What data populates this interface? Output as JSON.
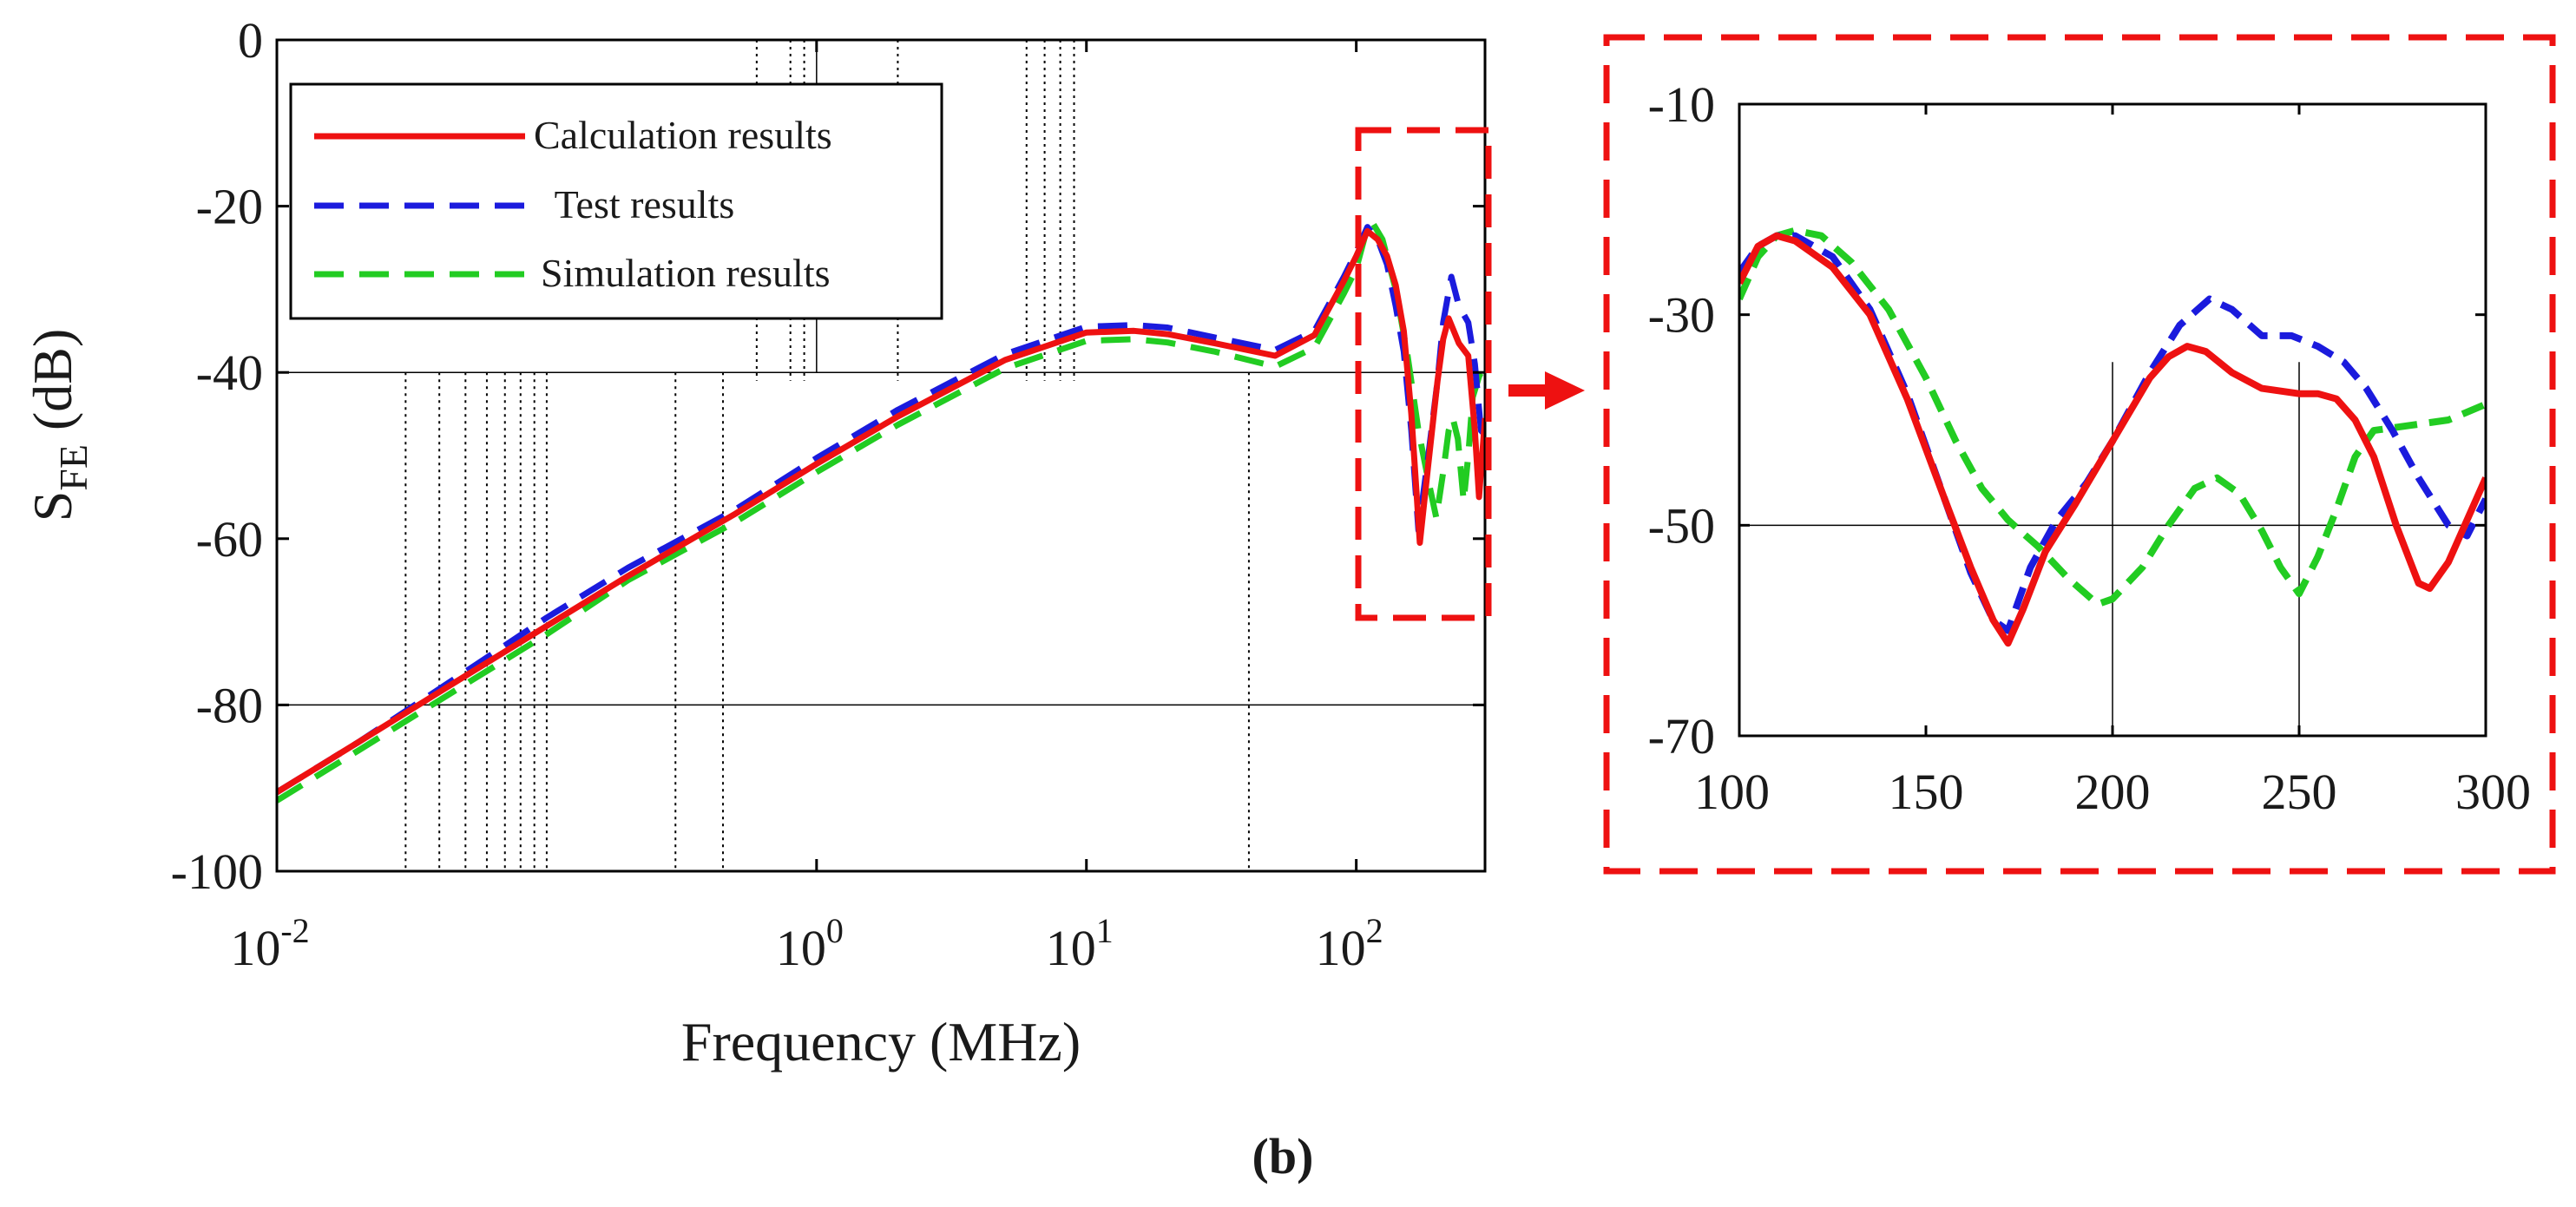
{
  "figure_label": "(b)",
  "colors": {
    "calculation": "#ee1111",
    "test": "#1b1bdd",
    "simulation": "#22cc22",
    "zoom_box": "#ee1111",
    "axis": "#000000",
    "grid": "#000000"
  },
  "chart_data": [
    {
      "id": "main",
      "type": "line",
      "x_scale": "log",
      "xlabel": "Frequency (MHz)",
      "ylabel_base": "S",
      "ylabel_sub": "FE",
      "ylabel_unit": "(dB)",
      "xlim": [
        0.01,
        300
      ],
      "ylim": [
        -100,
        0
      ],
      "y_ticks": [
        0,
        -20,
        -40,
        -60,
        -80,
        -100
      ],
      "y_tick_labels": [
        "0",
        "-20",
        "-40",
        "-60",
        "-80",
        "-100"
      ],
      "x_ticks": [
        {
          "value": 0.01,
          "base": "10",
          "exp": "-2"
        },
        {
          "value": 1,
          "base": "10",
          "exp": "0"
        },
        {
          "value": 10,
          "base": "10",
          "exp": "1"
        },
        {
          "value": 100,
          "base": "10",
          "exp": "2"
        }
      ],
      "grid": "partial",
      "legend_position": "top-left",
      "legend": [
        "Calculation results",
        " Test results",
        "Simulation results"
      ],
      "series": [
        {
          "name": "Calculation results",
          "key": "calculation",
          "style": "solid",
          "x": [
            0.01,
            0.02,
            0.05,
            0.1,
            0.2,
            0.5,
            1,
            2,
            5,
            10,
            15,
            20,
            30,
            50,
            70,
            90,
            100,
            110,
            120,
            130,
            140,
            150,
            160,
            172,
            185,
            200,
            210,
            220,
            240,
            260,
            275,
            285,
            300
          ],
          "values": [
            -90.5,
            -84.5,
            -76.5,
            -70.5,
            -64.5,
            -57,
            -51,
            -45.3,
            -38.5,
            -35.2,
            -35.0,
            -35.4,
            -36.5,
            -38.0,
            -35.5,
            -29,
            -26,
            -23,
            -24,
            -26,
            -29.5,
            -35,
            -45,
            -60.5,
            -51,
            -41,
            -36,
            -33.5,
            -36.5,
            -38,
            -47,
            -55,
            -45.5
          ]
        },
        {
          "name": "Test results",
          "key": "test",
          "style": "dashed",
          "x": [
            0.01,
            0.02,
            0.05,
            0.1,
            0.2,
            0.5,
            1,
            2,
            5,
            10,
            15,
            20,
            30,
            50,
            70,
            90,
            100,
            110,
            120,
            130,
            140,
            150,
            160,
            170,
            185,
            200,
            210,
            225,
            240,
            260,
            275,
            290,
            300
          ],
          "values": [
            -90.5,
            -84.5,
            -76,
            -69.5,
            -63.5,
            -56.5,
            -50.3,
            -44.5,
            -37.8,
            -34.5,
            -34.3,
            -34.6,
            -35.8,
            -37.3,
            -35,
            -28.5,
            -25.5,
            -22.5,
            -24,
            -27,
            -32,
            -37.5,
            -47,
            -59,
            -50,
            -41,
            -34,
            -28.5,
            -32,
            -34,
            -39,
            -47,
            -47.5
          ]
        },
        {
          "name": "Simulation results",
          "key": "simulation",
          "style": "dashed",
          "x": [
            0.01,
            0.02,
            0.05,
            0.1,
            0.2,
            0.5,
            1,
            2,
            5,
            10,
            15,
            20,
            30,
            50,
            70,
            90,
            100,
            108,
            115,
            125,
            140,
            155,
            170,
            185,
            198,
            210,
            220,
            228,
            238,
            250,
            260,
            270,
            285,
            300
          ],
          "values": [
            -91.5,
            -85.5,
            -77.5,
            -71.5,
            -65,
            -58,
            -52,
            -46.3,
            -39.5,
            -36.2,
            -36,
            -36.4,
            -37.5,
            -39.3,
            -37,
            -30.5,
            -27.5,
            -23.5,
            -22,
            -24,
            -30,
            -38,
            -47,
            -53,
            -57.5,
            -52,
            -47,
            -45.5,
            -48,
            -55.5,
            -50,
            -43,
            -40.5,
            -39
          ]
        }
      ]
    },
    {
      "id": "zoom",
      "type": "line",
      "x_scale": "linear",
      "xlabel": "",
      "ylabel": "",
      "xlim": [
        100,
        300
      ],
      "ylim": [
        -70,
        -10
      ],
      "x_ticks": [
        100,
        150,
        200,
        250,
        300
      ],
      "x_tick_labels": [
        "100",
        "150",
        "200",
        "250",
        "300"
      ],
      "y_ticks": [
        -10,
        -30,
        -50,
        -70
      ],
      "y_tick_labels": [
        "-10",
        "-30",
        "-50",
        "-70"
      ],
      "series": [
        {
          "name": "Calculation results",
          "key": "calculation",
          "style": "solid",
          "x": [
            100,
            105,
            110,
            115,
            125,
            135,
            145,
            155,
            162,
            168,
            172,
            176,
            182,
            190,
            200,
            210,
            215,
            220,
            225,
            232,
            240,
            250,
            255,
            260,
            265,
            270,
            276,
            282,
            285,
            290,
            295,
            300
          ],
          "values": [
            -27,
            -23.5,
            -22.5,
            -23,
            -25.5,
            -30,
            -38,
            -47.5,
            -54,
            -59,
            -61.2,
            -58,
            -52.5,
            -48,
            -42,
            -36,
            -34,
            -33,
            -33.5,
            -35.5,
            -37,
            -37.5,
            -37.5,
            -38,
            -40,
            -43.5,
            -50,
            -55.5,
            -56,
            -53.5,
            -49.5,
            -45.5
          ]
        },
        {
          "name": "Test results",
          "key": "test",
          "style": "dashed",
          "x": [
            100,
            105,
            110,
            115,
            125,
            135,
            145,
            155,
            162,
            168,
            172,
            178,
            185,
            193,
            200,
            210,
            218,
            226,
            232,
            240,
            248,
            255,
            262,
            268,
            275,
            282,
            290,
            295,
            300
          ],
          "values": [
            -26,
            -23.5,
            -22.5,
            -22.5,
            -24.5,
            -29.5,
            -37.5,
            -47.5,
            -54.5,
            -59,
            -60,
            -54,
            -49.5,
            -46,
            -42,
            -35.5,
            -31,
            -28.5,
            -29.5,
            -32,
            -32,
            -33,
            -34.5,
            -37,
            -41,
            -45.5,
            -50,
            -51,
            -47.5
          ]
        },
        {
          "name": "Simulation results",
          "key": "simulation",
          "style": "dashed",
          "x": [
            100,
            105,
            110,
            115,
            122,
            130,
            140,
            150,
            158,
            165,
            172,
            180,
            188,
            196,
            200,
            208,
            215,
            222,
            228,
            234,
            240,
            245,
            250,
            255,
            260,
            265,
            270,
            280,
            290,
            300
          ],
          "values": [
            -28.5,
            -24.5,
            -22.5,
            -22,
            -22.5,
            -25,
            -29.5,
            -36,
            -42,
            -46.5,
            -49.5,
            -52,
            -55,
            -57.5,
            -57,
            -54,
            -50,
            -46.5,
            -45.5,
            -47,
            -50.5,
            -54,
            -56.5,
            -53,
            -48.5,
            -43.5,
            -41,
            -40.5,
            -40,
            -38.5
          ]
        }
      ]
    }
  ]
}
